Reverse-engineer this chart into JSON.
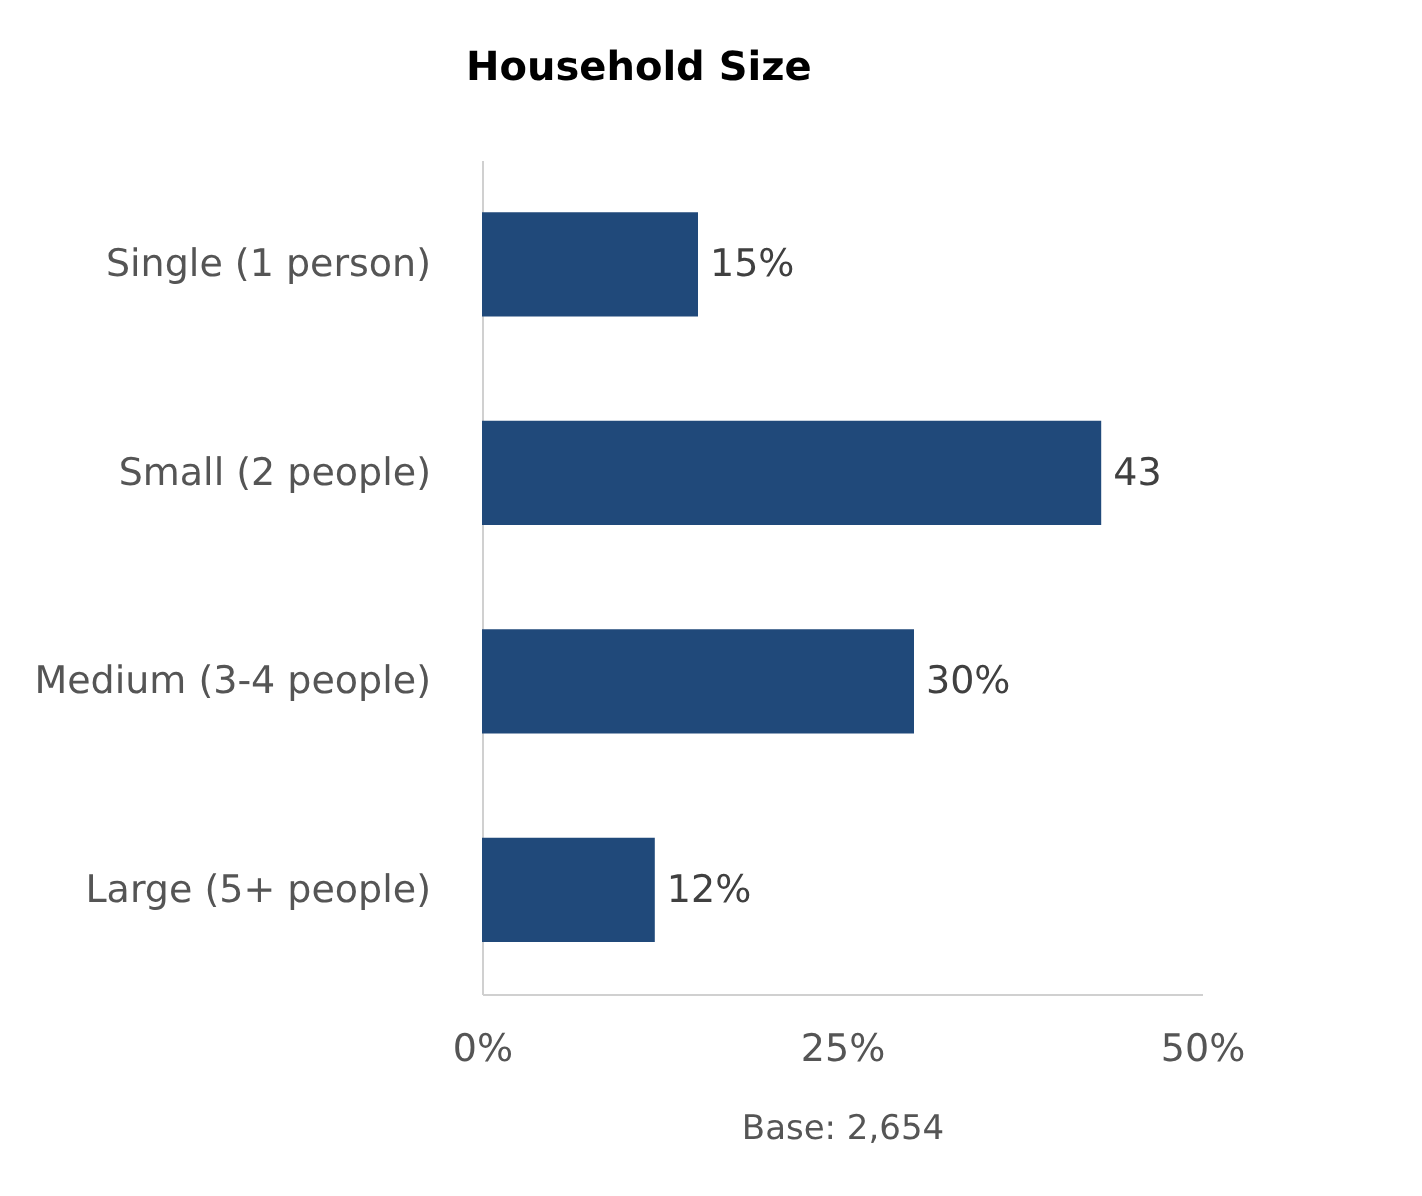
{
  "chart_data": {
    "type": "bar",
    "orientation": "horizontal",
    "title": "Household Size",
    "xlabel": "Base: 2,654",
    "categories": [
      "Single (1 person)",
      "Small (2 people)",
      "Medium (3-4 people)",
      "Large (5+ people)"
    ],
    "values": [
      15,
      43,
      30,
      12
    ],
    "value_labels": [
      "15%",
      "43",
      "30%",
      "12%"
    ],
    "color": "#20497a",
    "xlim": [
      0,
      50
    ],
    "xticks": [
      {
        "value": 0,
        "label": "0%"
      },
      {
        "value": 25,
        "label": "25%"
      },
      {
        "value": 50,
        "label": "50%"
      }
    ],
    "grid": false
  }
}
